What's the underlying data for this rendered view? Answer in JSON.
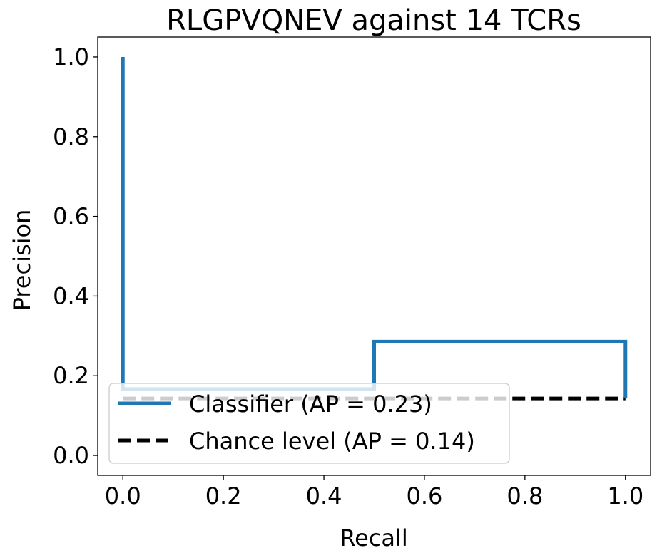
{
  "chart_data": {
    "type": "line",
    "title": "RLGPVQNEV against 14 TCRs",
    "xlabel": "Recall",
    "ylabel": "Precision",
    "xlim": [
      -0.05,
      1.05
    ],
    "ylim": [
      -0.05,
      1.05
    ],
    "xticks": [
      0.0,
      0.2,
      0.4,
      0.6,
      0.8,
      1.0
    ],
    "yticks": [
      0.0,
      0.2,
      0.4,
      0.6,
      0.8,
      1.0
    ],
    "xtick_labels": [
      "0.0",
      "0.2",
      "0.4",
      "0.6",
      "0.8",
      "1.0"
    ],
    "ytick_labels": [
      "0.0",
      "0.2",
      "0.4",
      "0.6",
      "0.8",
      "1.0"
    ],
    "grid": false,
    "legend_position": "lower-left",
    "series": [
      {
        "name": "Classifier (AP = 0.23)",
        "color": "#1f77b4",
        "style": "step-solid",
        "x": [
          0.0,
          0.0,
          0.5,
          0.5,
          1.0,
          1.0
        ],
        "y": [
          1.0,
          0.1667,
          0.1667,
          0.2857,
          0.2857,
          0.1429
        ]
      },
      {
        "name": "Chance level (AP = 0.14)",
        "color": "#000000",
        "style": "dashed",
        "x": [
          0.0,
          1.0
        ],
        "y": [
          0.1429,
          0.1429
        ]
      }
    ]
  }
}
